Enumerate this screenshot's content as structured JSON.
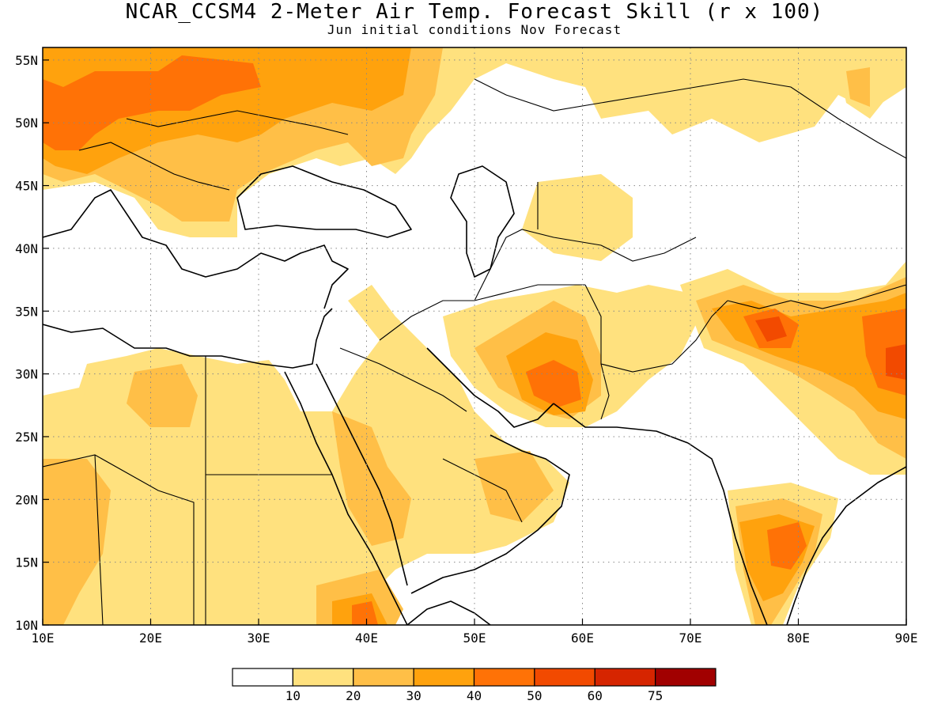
{
  "title": "NCAR_CCSM4 2-Meter Air Temp. Forecast Skill (r x 100)",
  "subtitle": "Jun initial conditions   Nov Forecast",
  "map": {
    "lon_range": [
      10,
      90
    ],
    "lat_range": [
      10,
      56
    ],
    "lon_ticks": [
      10,
      20,
      30,
      40,
      50,
      60,
      70,
      80,
      90
    ],
    "lat_ticks": [
      10,
      15,
      20,
      25,
      30,
      35,
      40,
      45,
      50,
      55
    ],
    "lon_tick_labels": [
      "10E",
      "20E",
      "30E",
      "40E",
      "50E",
      "60E",
      "70E",
      "80E",
      "90E"
    ],
    "lat_tick_labels": [
      "10N",
      "15N",
      "20N",
      "25N",
      "30N",
      "35N",
      "40N",
      "45N",
      "50N",
      "55N"
    ],
    "gridlines": true
  },
  "legend": {
    "labels": [
      "10",
      "20",
      "30",
      "40",
      "50",
      "60",
      "75"
    ],
    "colors": [
      "#ffffff",
      "#ffe17e",
      "#ffbf47",
      "#ffa20d",
      "#ff7206",
      "#f24a00",
      "#d62500",
      "#a10000"
    ]
  }
}
